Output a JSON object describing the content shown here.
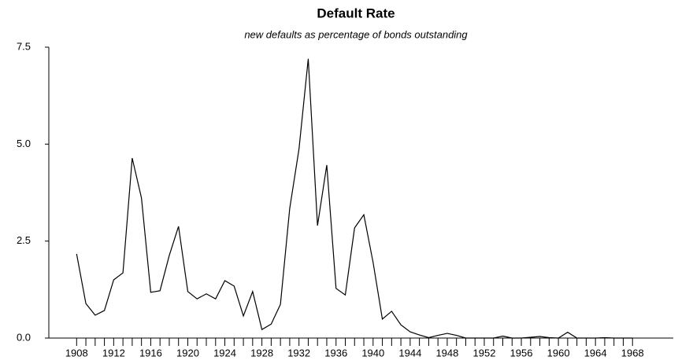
{
  "chart_data": {
    "type": "line",
    "title": "Default Rate",
    "subtitle": "new defaults as percentage of bonds outstanding",
    "x": [
      1908,
      1909,
      1910,
      1911,
      1912,
      1913,
      1914,
      1915,
      1916,
      1917,
      1918,
      1919,
      1920,
      1921,
      1922,
      1923,
      1924,
      1925,
      1926,
      1927,
      1928,
      1929,
      1930,
      1931,
      1932,
      1933,
      1934,
      1935,
      1936,
      1937,
      1938,
      1939,
      1940,
      1941,
      1942,
      1943,
      1944,
      1945,
      1946,
      1947,
      1948,
      1949,
      1950,
      1951,
      1952,
      1953,
      1954,
      1955,
      1956,
      1957,
      1958,
      1959,
      1960,
      1961,
      1962,
      1963,
      1964,
      1965,
      1966,
      1967,
      1968
    ],
    "series": [
      {
        "name": "Default Rate",
        "color": "#000000",
        "values": [
          2.17,
          0.89,
          0.59,
          0.71,
          1.5,
          1.68,
          4.64,
          3.61,
          1.18,
          1.22,
          2.13,
          2.88,
          1.2,
          1.01,
          1.14,
          1.01,
          1.48,
          1.34,
          0.57,
          1.2,
          0.22,
          0.36,
          0.87,
          3.34,
          4.87,
          7.2,
          2.9,
          4.46,
          1.28,
          1.11,
          2.84,
          3.18,
          1.95,
          0.49,
          0.69,
          0.34,
          0.16,
          0.08,
          0.01,
          0.07,
          0.12,
          0.07,
          0,
          0,
          0,
          0,
          0.05,
          0,
          0,
          0.02,
          0.04,
          0.01,
          0,
          0.15,
          0,
          0,
          0,
          0.01,
          0,
          0,
          0
        ]
      }
    ],
    "xlim": [
      1905,
      1972.4
    ],
    "xticks": [
      1908,
      1912,
      1916,
      1920,
      1924,
      1928,
      1932,
      1936,
      1940,
      1944,
      1948,
      1952,
      1956,
      1960,
      1964,
      1968
    ],
    "xminorticks": [
      1909,
      1910,
      1911,
      1913,
      1914,
      1915,
      1917,
      1918,
      1919,
      1921,
      1922,
      1923,
      1925,
      1926,
      1927,
      1929,
      1930,
      1931,
      1933,
      1934,
      1935,
      1937,
      1938,
      1939,
      1941,
      1942,
      1943,
      1945,
      1946,
      1947,
      1949,
      1950,
      1951,
      1953,
      1954,
      1955,
      1957,
      1958,
      1959,
      1961,
      1962,
      1963,
      1965,
      1966,
      1967
    ],
    "ylim": [
      0,
      7.5
    ],
    "yticks": [
      {
        "value": 0,
        "label": "0.0"
      },
      {
        "value": 2.5,
        "label": "2.5"
      },
      {
        "value": 5,
        "label": "5.0"
      },
      {
        "value": 7.5,
        "label": "7.5"
      }
    ],
    "grid": false
  }
}
